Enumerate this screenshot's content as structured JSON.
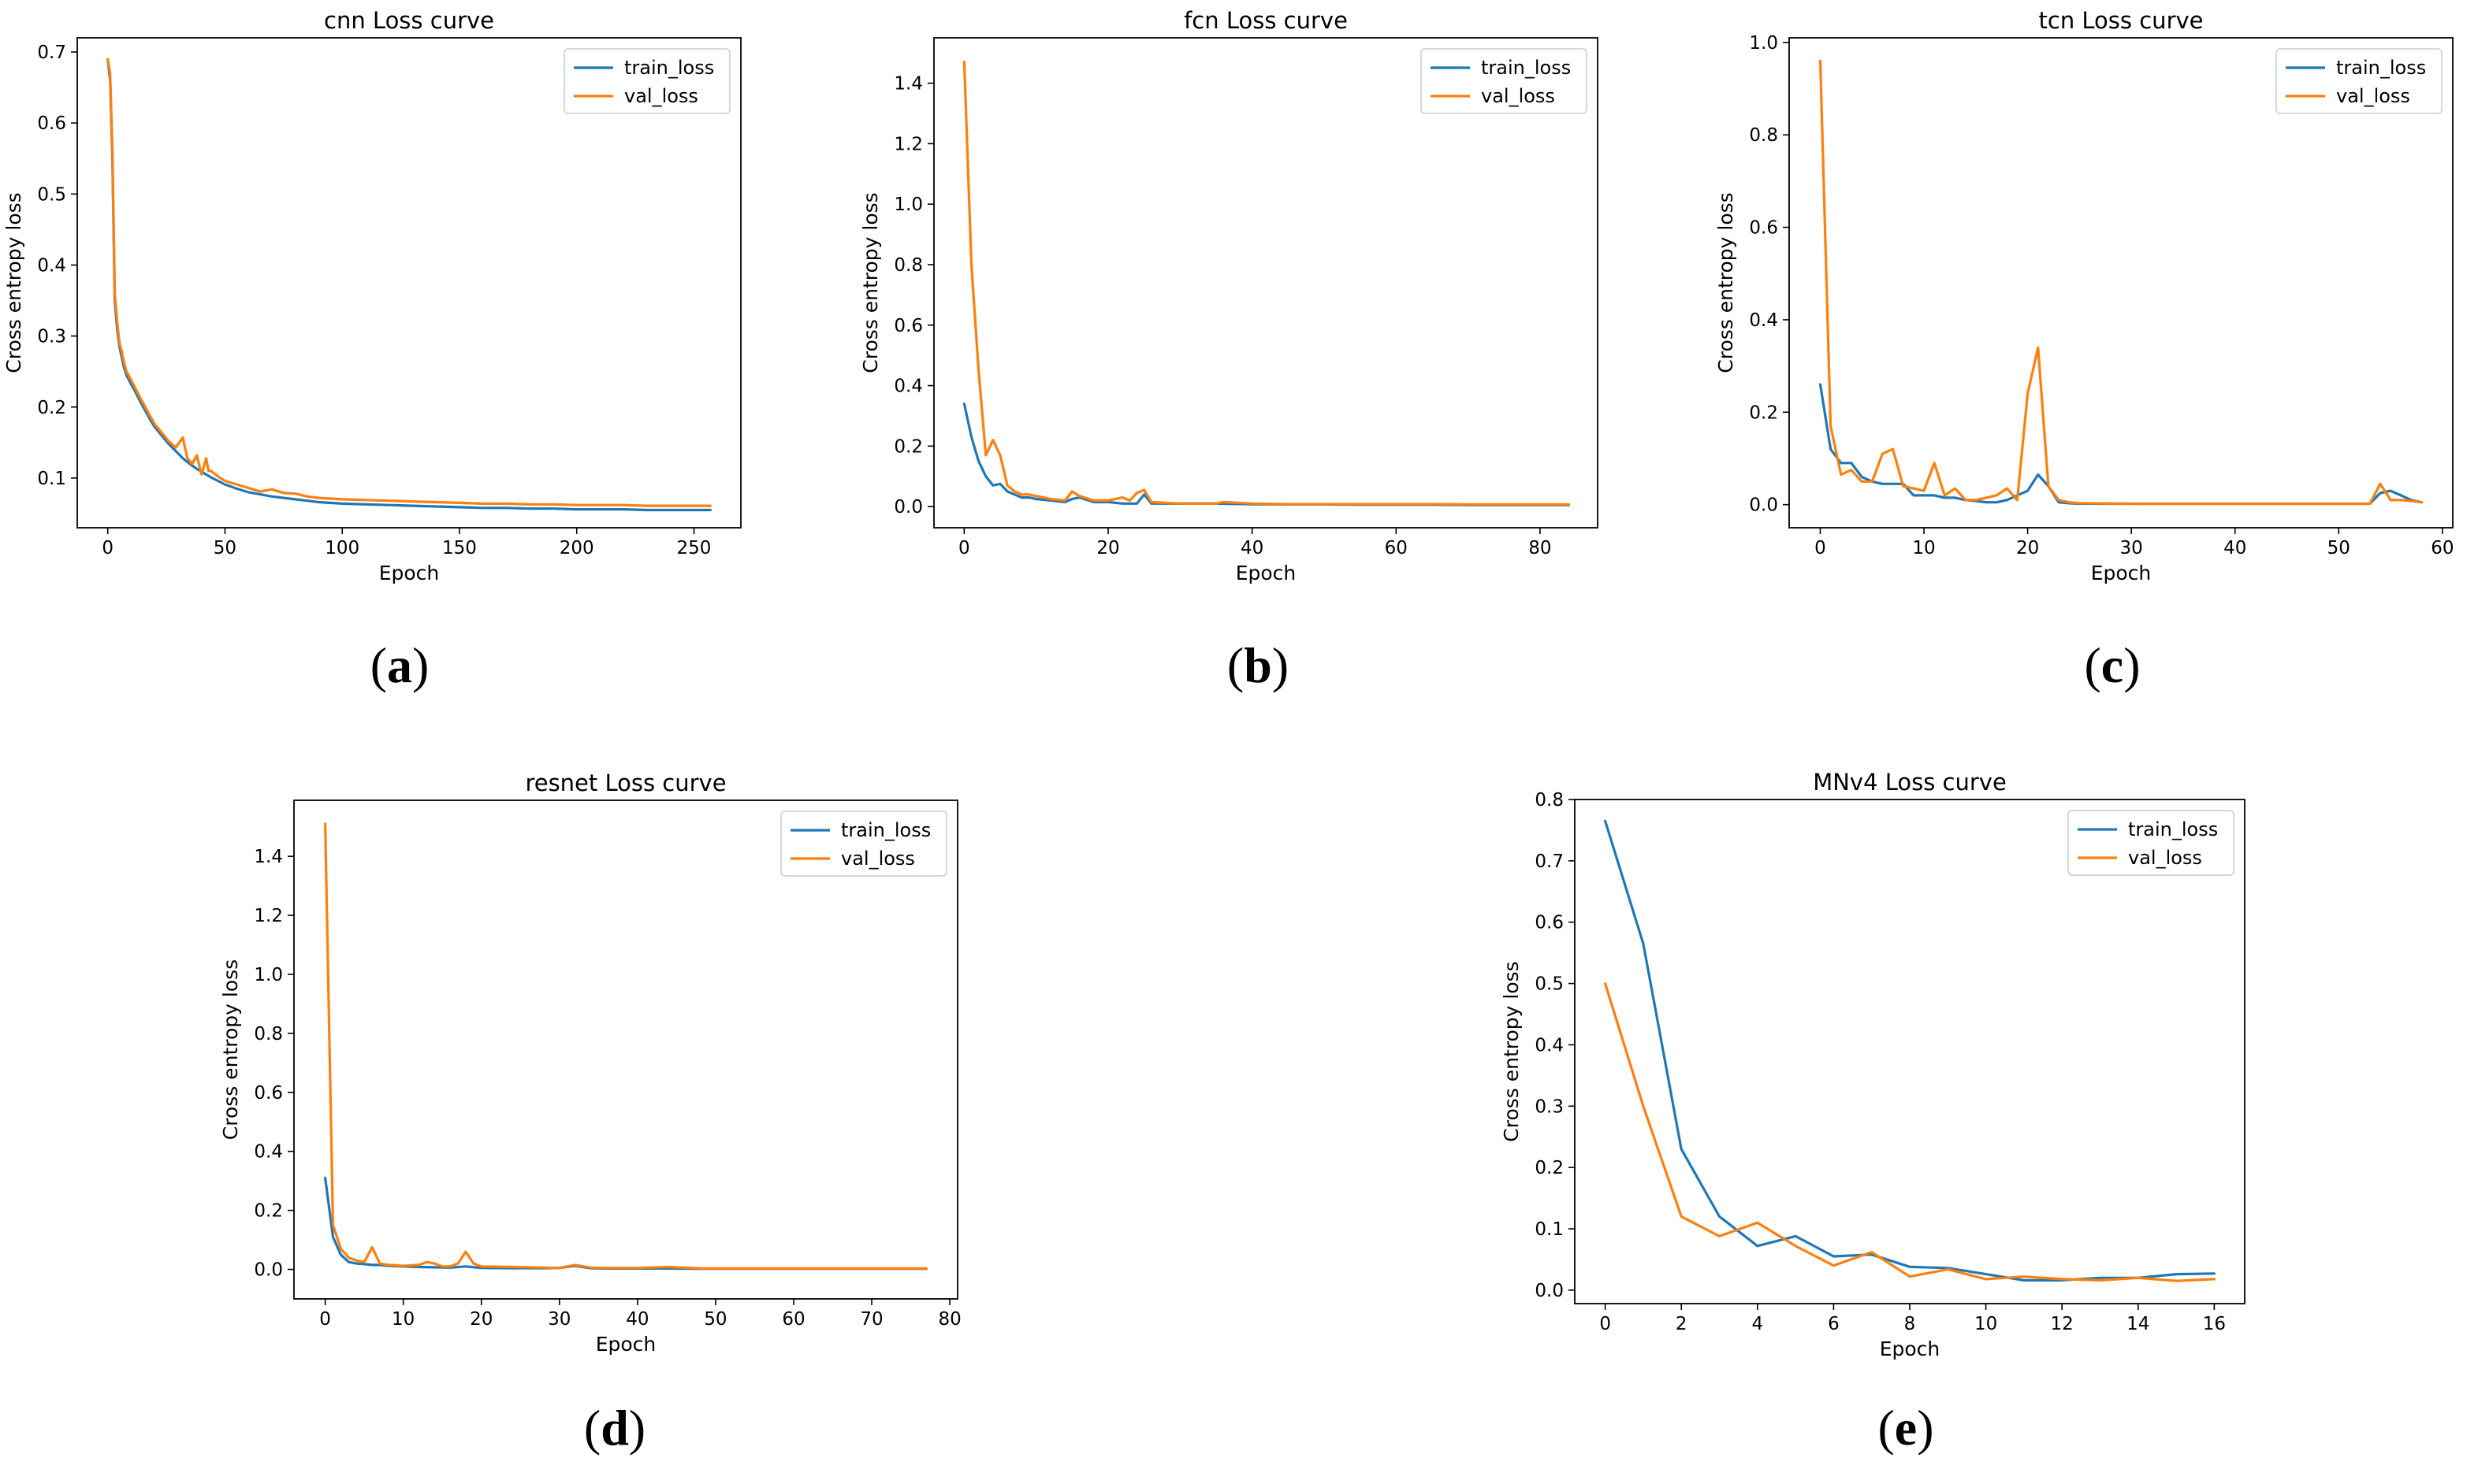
{
  "figure": {
    "colors": {
      "train": "#1f77b4",
      "val": "#ff7f0e"
    }
  },
  "chart_data": [
    {
      "id": "a",
      "type": "line",
      "panel_label": "a",
      "title": "cnn Loss curve",
      "xlabel": "Epoch",
      "ylabel": "Cross entropy loss",
      "xlim": [
        -13,
        270
      ],
      "ylim": [
        0.03,
        0.72
      ],
      "xticks": [
        0,
        50,
        100,
        150,
        200,
        250
      ],
      "yticks": [
        0.1,
        0.2,
        0.3,
        0.4,
        0.5,
        0.6,
        0.7
      ],
      "ytick_format": 1,
      "legend": {
        "position": "top-right",
        "entries": [
          "train_loss",
          "val_loss"
        ]
      },
      "series": [
        {
          "name": "train_loss",
          "color": "#1f77b4",
          "x": [
            0,
            1,
            2,
            3,
            4,
            5,
            6,
            7,
            8,
            10,
            12,
            14,
            16,
            18,
            20,
            23,
            26,
            29,
            32,
            35,
            38,
            41,
            44,
            47,
            50,
            55,
            60,
            65,
            70,
            75,
            80,
            85,
            90,
            100,
            110,
            120,
            130,
            140,
            150,
            160,
            170,
            180,
            190,
            200,
            210,
            220,
            230,
            240,
            250,
            257
          ],
          "y": [
            0.69,
            0.66,
            0.55,
            0.35,
            0.31,
            0.285,
            0.27,
            0.255,
            0.245,
            0.232,
            0.22,
            0.207,
            0.195,
            0.183,
            0.172,
            0.16,
            0.148,
            0.138,
            0.128,
            0.12,
            0.113,
            0.107,
            0.101,
            0.096,
            0.091,
            0.085,
            0.08,
            0.077,
            0.074,
            0.072,
            0.07,
            0.068,
            0.066,
            0.064,
            0.063,
            0.062,
            0.061,
            0.06,
            0.059,
            0.058,
            0.058,
            0.057,
            0.057,
            0.056,
            0.056,
            0.056,
            0.055,
            0.055,
            0.055,
            0.055
          ]
        },
        {
          "name": "val_loss",
          "color": "#ff7f0e",
          "x": [
            0,
            1,
            2,
            3,
            4,
            5,
            6,
            7,
            8,
            10,
            12,
            14,
            16,
            18,
            20,
            23,
            26,
            29,
            32,
            34,
            36,
            38,
            40,
            42,
            43,
            44,
            46,
            48,
            50,
            55,
            60,
            65,
            70,
            75,
            80,
            85,
            90,
            100,
            110,
            120,
            130,
            140,
            150,
            160,
            170,
            180,
            190,
            200,
            210,
            220,
            230,
            240,
            250,
            257
          ],
          "y": [
            0.69,
            0.67,
            0.56,
            0.36,
            0.32,
            0.29,
            0.278,
            0.262,
            0.25,
            0.238,
            0.225,
            0.212,
            0.2,
            0.188,
            0.176,
            0.164,
            0.152,
            0.143,
            0.157,
            0.128,
            0.12,
            0.132,
            0.105,
            0.128,
            0.11,
            0.11,
            0.105,
            0.1,
            0.096,
            0.091,
            0.086,
            0.081,
            0.084,
            0.079,
            0.078,
            0.074,
            0.072,
            0.07,
            0.069,
            0.068,
            0.067,
            0.066,
            0.065,
            0.064,
            0.064,
            0.063,
            0.063,
            0.062,
            0.062,
            0.062,
            0.061,
            0.061,
            0.061,
            0.061
          ]
        }
      ]
    },
    {
      "id": "b",
      "type": "line",
      "panel_label": "b",
      "title": "fcn Loss curve",
      "xlabel": "Epoch",
      "ylabel": "Cross entropy loss",
      "xlim": [
        -4.2,
        88
      ],
      "ylim": [
        -0.07,
        1.55
      ],
      "xticks": [
        0,
        20,
        40,
        60,
        80
      ],
      "yticks": [
        0.0,
        0.2,
        0.4,
        0.6,
        0.8,
        1.0,
        1.2,
        1.4
      ],
      "ytick_format": 1,
      "legend": {
        "position": "top-right",
        "entries": [
          "train_loss",
          "val_loss"
        ]
      },
      "series": [
        {
          "name": "train_loss",
          "color": "#1f77b4",
          "x": [
            0,
            1,
            2,
            3,
            4,
            5,
            6,
            7,
            8,
            9,
            10,
            12,
            14,
            15,
            16,
            18,
            20,
            22,
            24,
            25,
            26,
            28,
            30,
            35,
            40,
            45,
            50,
            55,
            60,
            65,
            70,
            75,
            80,
            84
          ],
          "y": [
            0.34,
            0.23,
            0.15,
            0.1,
            0.07,
            0.075,
            0.05,
            0.04,
            0.03,
            0.03,
            0.025,
            0.02,
            0.015,
            0.025,
            0.03,
            0.015,
            0.015,
            0.01,
            0.01,
            0.04,
            0.01,
            0.01,
            0.01,
            0.01,
            0.008,
            0.007,
            0.007,
            0.006,
            0.006,
            0.006,
            0.005,
            0.005,
            0.005,
            0.005
          ]
        },
        {
          "name": "val_loss",
          "color": "#ff7f0e",
          "x": [
            0,
            1,
            2,
            3,
            4,
            5,
            6,
            7,
            8,
            9,
            10,
            12,
            14,
            15,
            16,
            18,
            20,
            22,
            23,
            24,
            25,
            26,
            28,
            30,
            35,
            36,
            40,
            45,
            50,
            55,
            60,
            65,
            70,
            75,
            80,
            84
          ],
          "y": [
            1.47,
            0.8,
            0.45,
            0.17,
            0.22,
            0.17,
            0.07,
            0.05,
            0.04,
            0.04,
            0.035,
            0.025,
            0.02,
            0.05,
            0.035,
            0.02,
            0.02,
            0.03,
            0.02,
            0.045,
            0.055,
            0.015,
            0.012,
            0.01,
            0.01,
            0.015,
            0.01,
            0.008,
            0.008,
            0.008,
            0.008,
            0.008,
            0.007,
            0.007,
            0.007,
            0.007
          ]
        }
      ]
    },
    {
      "id": "c",
      "type": "line",
      "panel_label": "c",
      "title": "tcn Loss curve",
      "xlabel": "Epoch",
      "ylabel": "Cross entropy loss",
      "xlim": [
        -3,
        61
      ],
      "ylim": [
        -0.05,
        1.01
      ],
      "xticks": [
        0,
        10,
        20,
        30,
        40,
        50,
        60
      ],
      "yticks": [
        0.0,
        0.2,
        0.4,
        0.6,
        0.8,
        1.0
      ],
      "ytick_format": 1,
      "legend": {
        "position": "top-right",
        "entries": [
          "train_loss",
          "val_loss"
        ]
      },
      "series": [
        {
          "name": "train_loss",
          "color": "#1f77b4",
          "x": [
            0,
            1,
            2,
            3,
            4,
            5,
            6,
            7,
            8,
            9,
            10,
            11,
            12,
            13,
            14,
            15,
            16,
            17,
            18,
            19,
            20,
            21,
            22,
            23,
            24,
            25,
            30,
            35,
            40,
            45,
            50,
            53,
            54,
            55,
            56,
            57,
            58
          ],
          "y": [
            0.26,
            0.12,
            0.09,
            0.09,
            0.06,
            0.05,
            0.045,
            0.045,
            0.045,
            0.02,
            0.02,
            0.02,
            0.015,
            0.015,
            0.01,
            0.008,
            0.005,
            0.005,
            0.01,
            0.02,
            0.03,
            0.065,
            0.04,
            0.005,
            0.003,
            0.002,
            0.002,
            0.002,
            0.002,
            0.002,
            0.002,
            0.002,
            0.025,
            0.03,
            0.02,
            0.01,
            0.005
          ]
        },
        {
          "name": "val_loss",
          "color": "#ff7f0e",
          "x": [
            0,
            1,
            2,
            3,
            4,
            5,
            6,
            7,
            8,
            9,
            10,
            11,
            12,
            13,
            14,
            15,
            16,
            17,
            18,
            19,
            20,
            21,
            22,
            23,
            24,
            25,
            30,
            35,
            40,
            45,
            50,
            53,
            54,
            55,
            56,
            57,
            58
          ],
          "y": [
            0.96,
            0.17,
            0.065,
            0.075,
            0.05,
            0.05,
            0.11,
            0.12,
            0.04,
            0.035,
            0.03,
            0.09,
            0.02,
            0.035,
            0.01,
            0.01,
            0.015,
            0.02,
            0.035,
            0.01,
            0.24,
            0.34,
            0.04,
            0.01,
            0.005,
            0.003,
            0.002,
            0.002,
            0.002,
            0.002,
            0.002,
            0.002,
            0.045,
            0.01,
            0.01,
            0.008,
            0.005
          ]
        }
      ]
    },
    {
      "id": "d",
      "type": "line",
      "panel_label": "d",
      "title": "resnet Loss curve",
      "xlabel": "Epoch",
      "ylabel": "Cross entropy loss",
      "xlim": [
        -4,
        81
      ],
      "ylim": [
        -0.1,
        1.59
      ],
      "xticks": [
        0,
        10,
        20,
        30,
        40,
        50,
        60,
        70,
        80
      ],
      "yticks": [
        0.0,
        0.2,
        0.4,
        0.6,
        0.8,
        1.0,
        1.2,
        1.4
      ],
      "ytick_format": 1,
      "legend": {
        "position": "top-right",
        "entries": [
          "train_loss",
          "val_loss"
        ]
      },
      "series": [
        {
          "name": "train_loss",
          "color": "#1f77b4",
          "x": [
            0,
            1,
            2,
            3,
            4,
            5,
            6,
            7,
            8,
            10,
            12,
            14,
            16,
            18,
            20,
            24,
            28,
            30,
            32,
            34,
            36,
            40,
            44,
            48,
            50,
            55,
            60,
            65,
            70,
            75,
            77
          ],
          "y": [
            0.31,
            0.11,
            0.05,
            0.025,
            0.02,
            0.018,
            0.015,
            0.015,
            0.012,
            0.01,
            0.008,
            0.007,
            0.006,
            0.01,
            0.005,
            0.004,
            0.004,
            0.005,
            0.012,
            0.004,
            0.003,
            0.003,
            0.003,
            0.002,
            0.002,
            0.002,
            0.002,
            0.002,
            0.002,
            0.002,
            0.002
          ]
        },
        {
          "name": "val_loss",
          "color": "#ff7f0e",
          "x": [
            0,
            1,
            2,
            3,
            4,
            5,
            6,
            7,
            8,
            10,
            12,
            13,
            14,
            15,
            16,
            17,
            18,
            19,
            20,
            24,
            28,
            30,
            32,
            34,
            36,
            40,
            44,
            48,
            50,
            55,
            60,
            65,
            70,
            75,
            77
          ],
          "y": [
            1.51,
            0.15,
            0.07,
            0.04,
            0.03,
            0.025,
            0.075,
            0.02,
            0.015,
            0.012,
            0.015,
            0.025,
            0.02,
            0.01,
            0.01,
            0.02,
            0.06,
            0.02,
            0.01,
            0.008,
            0.006,
            0.005,
            0.015,
            0.006,
            0.005,
            0.005,
            0.008,
            0.003,
            0.003,
            0.003,
            0.003,
            0.003,
            0.003,
            0.003,
            0.003
          ]
        }
      ]
    },
    {
      "id": "e",
      "type": "line",
      "panel_label": "e",
      "title": "MNv4 Loss curve",
      "xlabel": "Epoch",
      "ylabel": "Cross entropy loss",
      "xlim": [
        -0.8,
        16.8
      ],
      "ylim": [
        -0.022,
        0.8
      ],
      "xticks": [
        0,
        2,
        4,
        6,
        8,
        10,
        12,
        14,
        16
      ],
      "yticks": [
        0.0,
        0.1,
        0.2,
        0.3,
        0.4,
        0.5,
        0.6,
        0.7,
        0.8
      ],
      "ytick_format": 1,
      "legend": {
        "position": "top-right",
        "entries": [
          "train_loss",
          "val_loss"
        ]
      },
      "series": [
        {
          "name": "train_loss",
          "color": "#1f77b4",
          "x": [
            0,
            1,
            2,
            3,
            4,
            5,
            6,
            7,
            8,
            9,
            10,
            11,
            12,
            13,
            14,
            15,
            16
          ],
          "y": [
            0.765,
            0.565,
            0.23,
            0.12,
            0.072,
            0.088,
            0.055,
            0.058,
            0.038,
            0.036,
            0.026,
            0.016,
            0.016,
            0.02,
            0.02,
            0.026,
            0.027
          ]
        },
        {
          "name": "val_loss",
          "color": "#ff7f0e",
          "x": [
            0,
            1,
            2,
            3,
            4,
            5,
            6,
            7,
            8,
            9,
            10,
            11,
            12,
            13,
            14,
            15,
            16
          ],
          "y": [
            0.5,
            0.3,
            0.12,
            0.088,
            0.11,
            0.072,
            0.04,
            0.062,
            0.022,
            0.034,
            0.018,
            0.022,
            0.018,
            0.016,
            0.02,
            0.015,
            0.018
          ]
        }
      ]
    }
  ]
}
